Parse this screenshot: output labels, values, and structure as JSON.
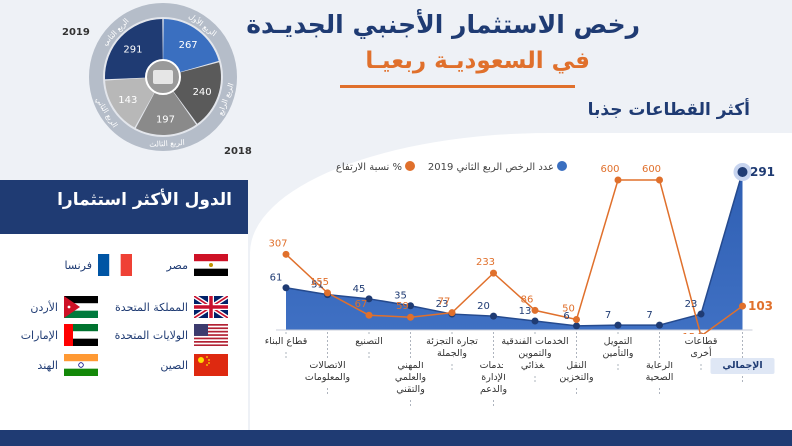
{
  "header": {
    "title_line1": "رخص الاستثمار الأجنبي الجديـدة",
    "title_line2": "في السعوديـة ربعيـا"
  },
  "quarters_ring": {
    "year_top": "2019",
    "year_bottom": "2018",
    "segments": [
      {
        "label": "الربع الثاني",
        "value": 291,
        "color": "#1f3b73"
      },
      {
        "label": "الربع الأول",
        "value": 267,
        "color": "#3a6fc0"
      },
      {
        "label": "الربع الرابع",
        "value": 240,
        "color": "#5a5a5a"
      },
      {
        "label": "الربع الثالث",
        "value": 197,
        "color": "#8a8a8a"
      },
      {
        "label": "الربع الثاني",
        "value": 143,
        "color": "#b8b8b8"
      }
    ]
  },
  "countries_panel": {
    "title": "الدول الأكثر استثمارا",
    "countries": [
      {
        "name": "مصر",
        "flag": "egypt-flag"
      },
      {
        "name": "فرنسا",
        "flag": "france-flag"
      },
      {
        "name": "المملكة المتحدة",
        "flag": "uk-flag"
      },
      {
        "name": "الأردن",
        "flag": "jordan-flag"
      },
      {
        "name": "الولايات المتحدة",
        "flag": "usa-flag"
      },
      {
        "name": "الإمارات",
        "flag": "uae-flag"
      },
      {
        "name": "الصين",
        "flag": "china-flag"
      },
      {
        "name": "الهند",
        "flag": "india-flag"
      }
    ]
  },
  "chart_data": {
    "type": "line",
    "title": "أكثر القطاعات جذبا",
    "legend_position": "top",
    "categories": [
      [
        "قطاع البناء"
      ],
      [
        "الاتصالات",
        "والمعلومات"
      ],
      [
        "التصنيع"
      ],
      [
        "المهني",
        "والعلمي",
        "والتقني"
      ],
      [
        "تجارة التجزئة",
        "والجملة"
      ],
      [
        "خدمات",
        "الإدارة",
        "والدعم"
      ],
      [
        "الخدمات الفندقية",
        "والتموين",
        "الغذائي"
      ],
      [
        "النقل",
        "والتخزين"
      ],
      [
        "التمويل",
        "والتأمين"
      ],
      [
        "الرعاية",
        "الصحية"
      ],
      [
        "قطاعات",
        "أخرى"
      ],
      [
        "الإجمالي"
      ]
    ],
    "series": [
      {
        "name": "عدد الرخص الربع الثاني 2019",
        "color": "#3a6fc0",
        "values": [
          61,
          51,
          45,
          35,
          23,
          20,
          13,
          6,
          7,
          7,
          23,
          291
        ]
      },
      {
        "name": "نسبة الارتفاع %",
        "color": "#e0702c",
        "values": [
          307,
          155,
          67,
          59,
          77,
          233,
          86,
          50,
          600,
          600,
          -15,
          103
        ]
      }
    ],
    "value_labels": {
      "count": [
        "61",
        "51",
        "45",
        "35",
        "23",
        "20",
        "13",
        "6",
        "7",
        "7",
        "23",
        "291"
      ],
      "percent": [
        "307",
        "155",
        "67",
        "59",
        "77",
        "233",
        "86",
        "50",
        "600",
        "600",
        "-15",
        "103"
      ]
    }
  }
}
